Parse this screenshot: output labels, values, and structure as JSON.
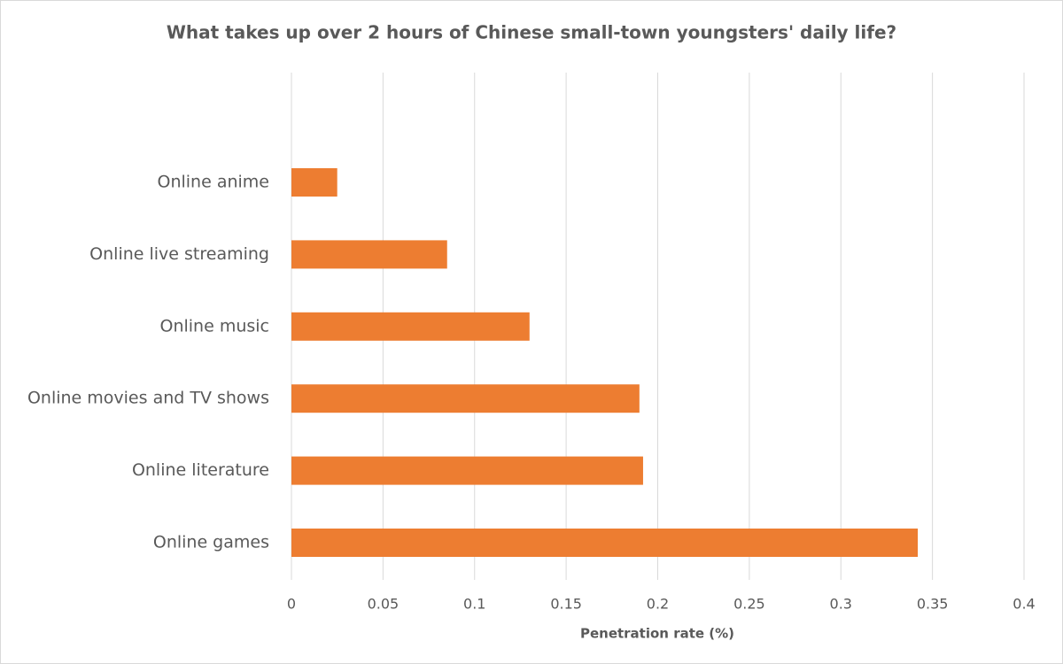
{
  "chart_data": {
    "type": "bar",
    "orientation": "horizontal",
    "title": "What takes up over 2 hours of Chinese small-town youngsters' daily life?",
    "x_label": "Penetration rate (%)",
    "categories": [
      "Online anime",
      "Online live streaming",
      "Online music",
      "Online movies and TV shows",
      "Online literature",
      "Online games"
    ],
    "values": [
      0.025,
      0.085,
      0.13,
      0.19,
      0.192,
      0.342
    ],
    "color": "#ed7d31",
    "xlim": [
      0,
      0.4
    ],
    "xticks": [
      0,
      0.05,
      0.1,
      0.15,
      0.2,
      0.25,
      0.3,
      0.35,
      0.4
    ],
    "grid": true
  }
}
